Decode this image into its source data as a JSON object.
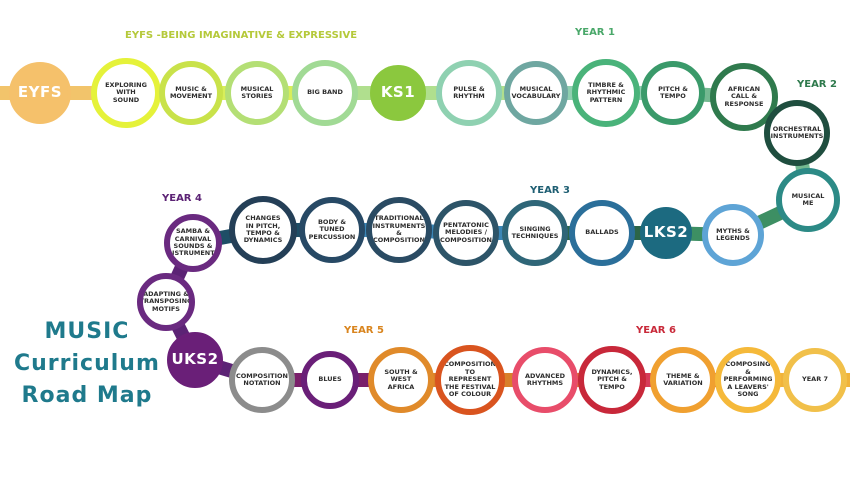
{
  "title": {
    "line1": "MUSIC",
    "line2": "Curriculum",
    "line3": "Road Map"
  },
  "stage_headers": [
    {
      "text": "EYFS -Being imaginative & expressive",
      "color": "#b5c93a"
    },
    {
      "text": "YEAR 1",
      "color": "#4aa86a"
    },
    {
      "text": "YEAR 2",
      "color": "#2f7a4d"
    },
    {
      "text": "YEAR 3",
      "color": "#1f5f73"
    },
    {
      "text": "YEAR 4",
      "color": "#5c2375"
    },
    {
      "text": "YEAR 5",
      "color": "#d9851f"
    },
    {
      "text": "YEAR 6",
      "color": "#c92a3a"
    }
  ],
  "path_colors": [
    "#f2c46b",
    "#d8ee5a",
    "#b0df8e",
    "#8fcfb0",
    "#74b991",
    "#3d8f63",
    "#2c6548",
    "#3b86b6",
    "#1e4e66",
    "#5c2375",
    "#7a1f6a",
    "#d9802a",
    "#d73b58",
    "#f0b33a"
  ],
  "nodes": [
    {
      "label": "EYFS",
      "color": "#f5c16b",
      "solid": true
    },
    {
      "label": "Exploring with sound",
      "color": "#e5f23a"
    },
    {
      "label": "Music & Movement",
      "color": "#c9e24a"
    },
    {
      "label": "Musical Stories",
      "color": "#b4df75"
    },
    {
      "label": "Big Band",
      "color": "#a1da95"
    },
    {
      "label": "KS1",
      "color": "#8bc83e",
      "solid": true
    },
    {
      "label": "Pulse & Rhythm",
      "color": "#8fd1b1"
    },
    {
      "label": "Musical Vocabulary",
      "color": "#6fa7a1"
    },
    {
      "label": "Timbre & Rhythmic Pattern",
      "color": "#4ab37a"
    },
    {
      "label": "Pitch & Tempo",
      "color": "#3a9a6a"
    },
    {
      "label": "African Call & Response",
      "color": "#2f7a4d"
    },
    {
      "label": "Orchestral Instruments",
      "color": "#1f4e3f"
    },
    {
      "label": "Musical Me",
      "color": "#2c8a86"
    },
    {
      "label": "Myths & Legends",
      "color": "#5ea4d6"
    },
    {
      "label": "LKS2",
      "color": "#1c6a80",
      "solid": true
    },
    {
      "label": "Ballads",
      "color": "#2b6f9a"
    },
    {
      "label": "Singing Techniques",
      "color": "#2f6678"
    },
    {
      "label": "Pentatonic Melodies / Composition",
      "color": "#2d5468"
    },
    {
      "label": "Traditional Instruments & Composition",
      "color": "#2a4b63"
    },
    {
      "label": "Body & Tuned Percussion",
      "color": "#274965"
    },
    {
      "label": "Changes in Pitch, Tempo & Dynamics",
      "color": "#243f57"
    },
    {
      "label": "Samba & Carnival Sounds & Instruments",
      "color": "#6a2a80"
    },
    {
      "label": "Adapting & Transposing Motifs",
      "color": "#6a2a80"
    },
    {
      "label": "UKS2",
      "color": "#6a1f78",
      "solid": true
    },
    {
      "label": "Composition Notation",
      "color": "#8c8c8c"
    },
    {
      "label": "Blues",
      "color": "#6a1f78"
    },
    {
      "label": "South & West Africa",
      "color": "#e08a2a"
    },
    {
      "label": "Composition to Represent the Festival of Colour",
      "color": "#d9541f"
    },
    {
      "label": "Advanced Rhythms",
      "color": "#e84d6a"
    },
    {
      "label": "Dynamics, Pitch & Tempo",
      "color": "#c8283a"
    },
    {
      "label": "Theme & Variation",
      "color": "#f0a030"
    },
    {
      "label": "Composing & Performing a Leavers' Song",
      "color": "#f5b93a"
    },
    {
      "label": "YEAR 7",
      "color": "#f1c04a"
    }
  ]
}
